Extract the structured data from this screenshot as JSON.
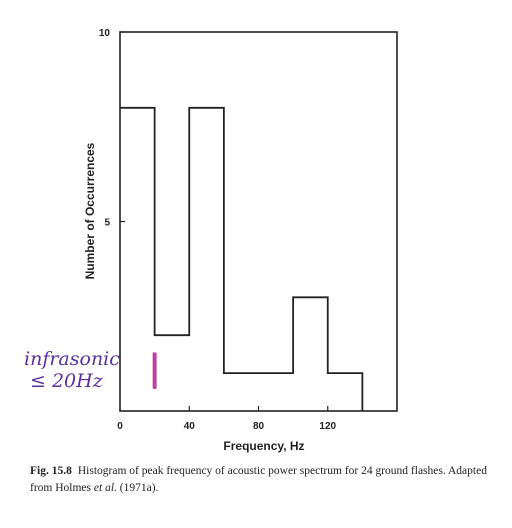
{
  "chart_data": {
    "type": "bar",
    "chart_style": "histogram-step",
    "bin_edges": [
      0,
      20,
      40,
      60,
      80,
      100,
      120,
      140
    ],
    "values": [
      8,
      2,
      8,
      1,
      1,
      3,
      1
    ],
    "xlabel": "Frequency, Hz",
    "ylabel": "Number of Occurrences",
    "xlim": [
      0,
      160
    ],
    "ylim": [
      0,
      10
    ],
    "x_ticks": [
      "0",
      "40",
      "80",
      "120"
    ],
    "x_tick_values": [
      0,
      40,
      80,
      120
    ],
    "y_ticks": [
      "5",
      "10"
    ],
    "y_tick_values": [
      5,
      10
    ],
    "grid": false,
    "line_color": "#222222"
  },
  "caption": {
    "fig_label": "Fig. 15.8",
    "text_before": "Histogram of peak frequency of acoustic power spectrum for 24 ground flashes. Adapted from Holmes ",
    "text_italic": "et al",
    "text_after": ". (1971a)."
  },
  "annotation": {
    "line1": "infrasonic",
    "line2": "≤ 20Hz",
    "ink_color": "#5a2fa0",
    "marker_color": "#c040a0",
    "marker_x_value": 20,
    "marker_y_range": [
      1,
      2
    ]
  }
}
